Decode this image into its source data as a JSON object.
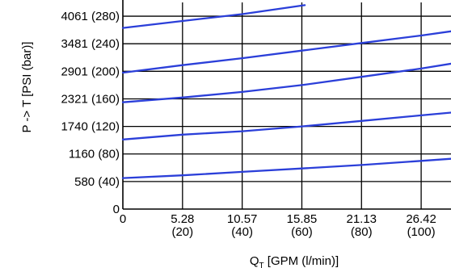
{
  "chart_data": {
    "type": "line",
    "xlabel_main": "Q",
    "xlabel_sub": "T",
    "xlabel_rest": " [GPM (l/min)]",
    "ylabel": "P -> T  [PSI (bar)]",
    "xlim": [
      0,
      110
    ],
    "ylim": [
      0,
      300
    ],
    "grid": true,
    "x_ticks": [
      {
        "value": 0,
        "label": "0",
        "sub": ""
      },
      {
        "value": 20,
        "label": "5.28",
        "sub": "(20)"
      },
      {
        "value": 40,
        "label": "10.57",
        "sub": "(40)"
      },
      {
        "value": 60,
        "label": "15.85",
        "sub": "(60)"
      },
      {
        "value": 80,
        "label": "21.13",
        "sub": "(80)"
      },
      {
        "value": 100,
        "label": "26.42",
        "sub": "(100)"
      }
    ],
    "y_ticks": [
      {
        "value": 0,
        "label": "0"
      },
      {
        "value": 40,
        "label": "580 (40)"
      },
      {
        "value": 80,
        "label": "1160 (80)"
      },
      {
        "value": 120,
        "label": "1740 (120)"
      },
      {
        "value": 160,
        "label": "2321 (160)"
      },
      {
        "value": 200,
        "label": "2901 (200)"
      },
      {
        "value": 240,
        "label": "3481 (240)"
      },
      {
        "value": 280,
        "label": "4061 (280)"
      }
    ],
    "line_color": "#2b3fd9",
    "series": [
      {
        "x": [
          0,
          20,
          40,
          60,
          80,
          100,
          110
        ],
        "y": [
          45,
          49,
          54,
          59,
          64,
          70,
          73
        ]
      },
      {
        "x": [
          0,
          20,
          40,
          60,
          80,
          100,
          110
        ],
        "y": [
          101,
          108,
          113,
          120,
          128,
          136,
          140
        ]
      },
      {
        "x": [
          0,
          20,
          40,
          60,
          80,
          100,
          110
        ],
        "y": [
          155,
          162,
          170,
          180,
          192,
          204,
          211
        ]
      },
      {
        "x": [
          0,
          20,
          40,
          60,
          80,
          100,
          110
        ],
        "y": [
          198,
          209,
          219,
          230,
          241,
          252,
          258
        ]
      },
      {
        "x": [
          0,
          20,
          40,
          61
        ],
        "y": [
          263,
          273,
          283,
          296
        ]
      }
    ]
  }
}
